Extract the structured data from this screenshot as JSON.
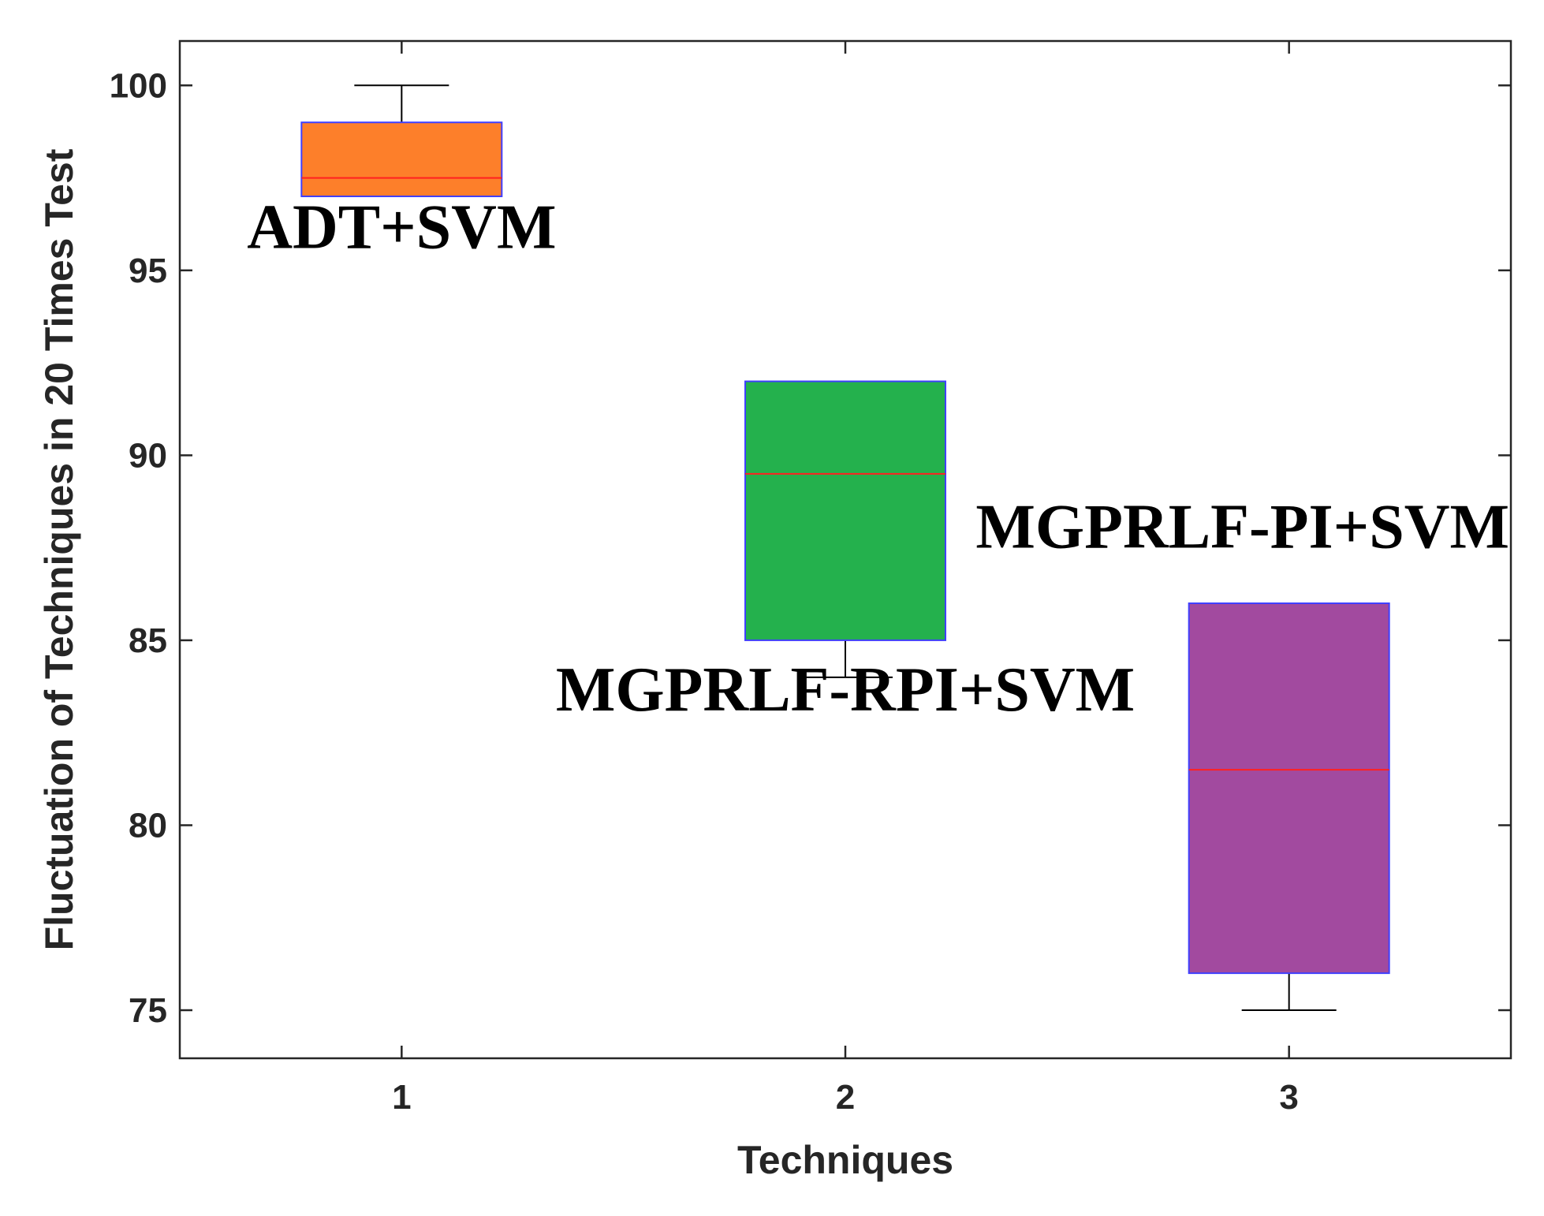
{
  "chart_data": {
    "type": "boxplot",
    "xlabel": "Techniques",
    "ylabel": "Fluctuation of Techniques in 20 Times Test",
    "x_ticks": [
      "1",
      "2",
      "3"
    ],
    "y_ticks": [
      75,
      80,
      85,
      90,
      95,
      100
    ],
    "xlim": [
      0.5,
      3.5
    ],
    "ylim": [
      73.7,
      101.2
    ],
    "grid": false,
    "boxes": [
      {
        "x": 1,
        "whisker_low": 97.0,
        "q1": 97.0,
        "median": 97.5,
        "q3": 99.0,
        "whisker_high": 100.0,
        "fill": "#fd7f2a"
      },
      {
        "x": 2,
        "whisker_low": 84.0,
        "q1": 85.0,
        "median": 89.5,
        "q3": 92.0,
        "whisker_high": 92.0,
        "fill": "#24b14d"
      },
      {
        "x": 3,
        "whisker_low": 75.0,
        "q1": 76.0,
        "median": 81.5,
        "q3": 86.0,
        "whisker_high": 86.0,
        "fill": "#a24a9f"
      }
    ],
    "annotations": [
      {
        "text": "ADT+SVM",
        "x": 1,
        "y": 95.6
      },
      {
        "text": "MGPRLF-RPI+SVM",
        "x": 2,
        "y": 83.1
      },
      {
        "text": "MGPRLF-PI+SVM",
        "x": 3,
        "y": 87.5
      }
    ],
    "colors": {
      "box_edge": "#4040ff",
      "median": "#ff2020",
      "whisker": "#000000",
      "axis": "#262626"
    }
  }
}
